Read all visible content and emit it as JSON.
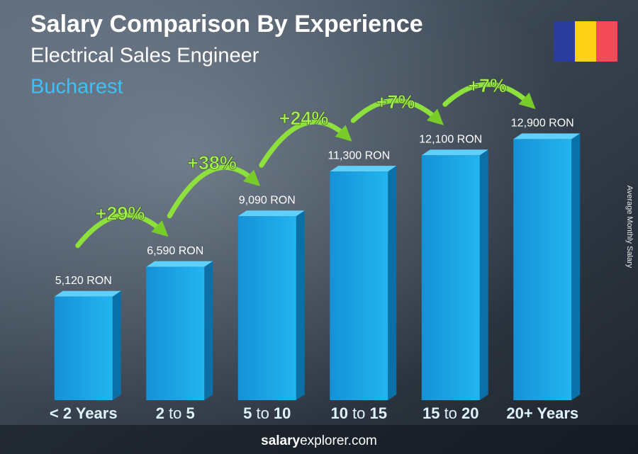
{
  "chart_data": {
    "type": "bar",
    "title": "Salary Comparison By Experience",
    "subtitle": "Electrical Sales Engineer",
    "location": "Bucharest",
    "y_axis_label": "Average Monthly Salary",
    "categories": [
      "< 2 Years",
      "2 to 5",
      "5 to 10",
      "10 to 15",
      "15 to 20",
      "20+ Years"
    ],
    "values": [
      5120,
      6590,
      9090,
      11300,
      12100,
      12900
    ],
    "value_labels": [
      "5,120 RON",
      "6,590 RON",
      "9,090 RON",
      "11,300 RON",
      "12,100 RON",
      "12,900 RON"
    ],
    "color": "#1aa7e8",
    "ylim": [
      0,
      14000
    ],
    "increases": {
      "values": [
        29,
        38,
        24,
        7,
        7
      ],
      "value_labels": [
        "+29%",
        "+38%",
        "+24%",
        "+7%",
        "+7%"
      ],
      "color": "#8ee03c"
    },
    "footer": "salaryexplorer.com"
  }
}
